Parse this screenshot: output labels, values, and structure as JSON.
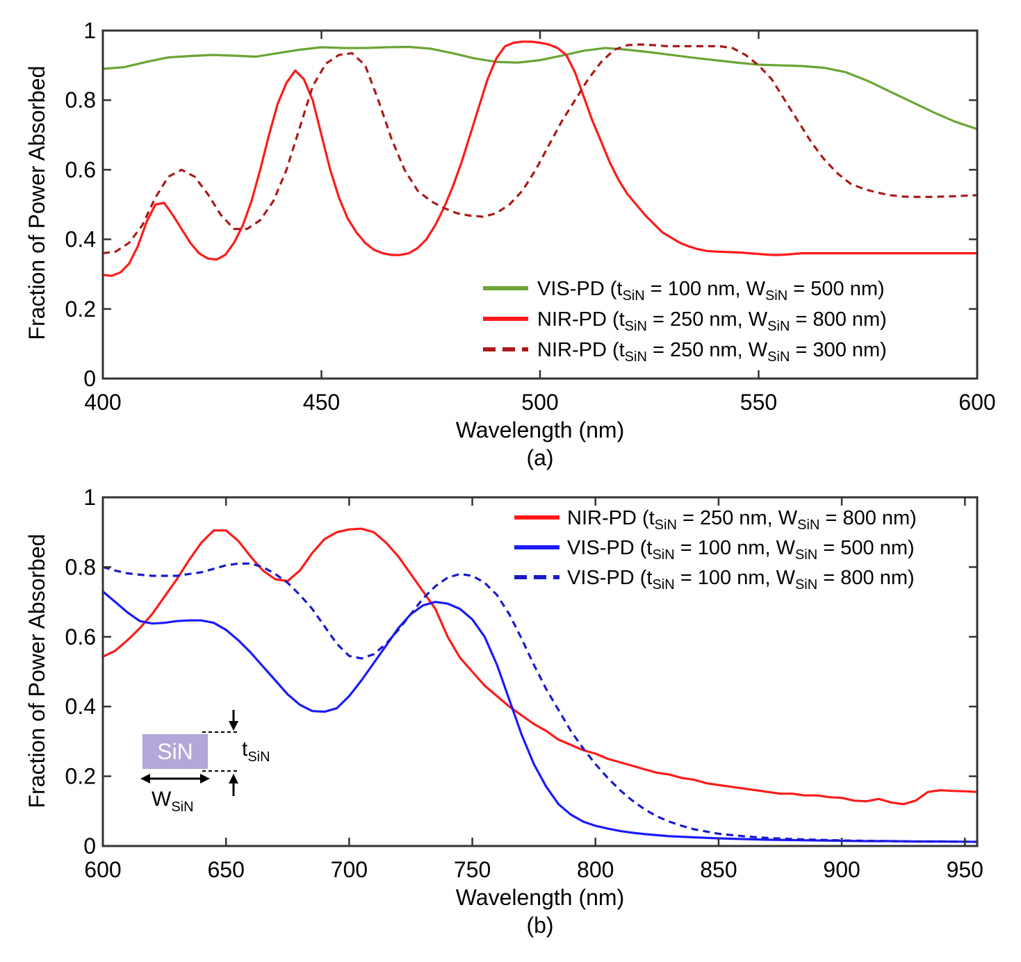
{
  "chart_data": [
    {
      "type": "line",
      "caption": "(a)",
      "xlabel": "Wavelength (nm)",
      "ylabel": "Fraction of Power Absorbed",
      "xlim": [
        400,
        600
      ],
      "ylim": [
        0,
        1
      ],
      "xticks": [
        "400",
        "450",
        "500",
        "550",
        "600"
      ],
      "yticks": [
        "0",
        "0.2",
        "0.4",
        "0.6",
        "0.8",
        "1"
      ],
      "legend_position": "bottom-right",
      "series": [
        {
          "name": "VIS-PD",
          "label_prefix": "VIS-PD (t",
          "t_value": " = 100 nm, W",
          "w_value": " = 500 nm)",
          "subscript": "SiN",
          "color": "#6aa535",
          "dash": "solid",
          "x": [
            400,
            405,
            410,
            415,
            420,
            425,
            430,
            435,
            440,
            445,
            450,
            455,
            460,
            465,
            470,
            475,
            480,
            485,
            490,
            495,
            500,
            505,
            510,
            515,
            520,
            525,
            530,
            535,
            540,
            545,
            550,
            555,
            560,
            565,
            570,
            575,
            580,
            585,
            590,
            595,
            600
          ],
          "y": [
            0.89,
            0.895,
            0.91,
            0.923,
            0.927,
            0.93,
            0.928,
            0.925,
            0.935,
            0.945,
            0.952,
            0.95,
            0.95,
            0.952,
            0.953,
            0.948,
            0.935,
            0.92,
            0.91,
            0.908,
            0.915,
            0.928,
            0.942,
            0.95,
            0.945,
            0.938,
            0.93,
            0.922,
            0.915,
            0.908,
            0.902,
            0.9,
            0.898,
            0.893,
            0.88,
            0.855,
            0.825,
            0.795,
            0.765,
            0.738,
            0.717
          ]
        },
        {
          "name": "NIR-PD 800",
          "label_prefix": "NIR-PD (t",
          "t_value": " = 250 nm, W",
          "w_value": " = 800 nm)",
          "subscript": "SiN",
          "color": "#ff1a1a",
          "dash": "solid",
          "x": [
            400,
            402,
            404,
            406,
            408,
            410,
            412,
            414,
            416,
            418,
            420,
            422,
            424,
            426,
            428,
            430,
            432,
            434,
            436,
            438,
            440,
            442,
            444,
            446,
            448,
            450,
            452,
            454,
            456,
            458,
            460,
            462,
            464,
            466,
            468,
            470,
            472,
            474,
            476,
            478,
            480,
            482,
            484,
            486,
            488,
            490,
            492,
            494,
            496,
            498,
            500,
            502,
            504,
            506,
            508,
            510,
            512,
            514,
            516,
            518,
            520,
            522,
            524,
            526,
            528,
            530,
            532,
            534,
            536,
            538,
            540,
            542,
            544,
            546,
            548,
            550,
            552,
            554,
            556,
            558,
            560,
            562,
            564,
            566,
            568,
            570,
            572,
            574,
            576,
            578,
            580,
            582,
            584,
            586,
            588,
            590,
            592,
            594,
            596,
            598,
            600
          ],
          "y": [
            0.298,
            0.295,
            0.305,
            0.33,
            0.38,
            0.45,
            0.5,
            0.505,
            0.47,
            0.43,
            0.39,
            0.36,
            0.345,
            0.342,
            0.355,
            0.39,
            0.44,
            0.51,
            0.6,
            0.7,
            0.79,
            0.85,
            0.885,
            0.86,
            0.8,
            0.7,
            0.6,
            0.52,
            0.46,
            0.42,
            0.39,
            0.37,
            0.36,
            0.355,
            0.355,
            0.36,
            0.375,
            0.4,
            0.44,
            0.49,
            0.55,
            0.62,
            0.7,
            0.78,
            0.86,
            0.92,
            0.955,
            0.965,
            0.968,
            0.968,
            0.965,
            0.96,
            0.95,
            0.93,
            0.88,
            0.81,
            0.74,
            0.68,
            0.62,
            0.57,
            0.53,
            0.5,
            0.47,
            0.445,
            0.42,
            0.405,
            0.39,
            0.38,
            0.372,
            0.367,
            0.365,
            0.364,
            0.363,
            0.362,
            0.36,
            0.358,
            0.356,
            0.355,
            0.356,
            0.358,
            0.36,
            0.36,
            0.36,
            0.36,
            0.36,
            0.36,
            0.36,
            0.36,
            0.36,
            0.36,
            0.36,
            0.36,
            0.36,
            0.36,
            0.36,
            0.36,
            0.36,
            0.36,
            0.36,
            0.36,
            0.36
          ]
        },
        {
          "name": "NIR-PD 300",
          "label_prefix": "NIR-PD (t",
          "t_value": " = 250 nm, W",
          "w_value": " = 300 nm)",
          "subscript": "SiN",
          "color": "#aa1a1a",
          "dash": "dashed",
          "x": [
            400,
            403,
            406,
            409,
            412,
            415,
            418,
            421,
            424,
            427,
            430,
            433,
            436,
            439,
            442,
            445,
            448,
            451,
            454,
            457,
            460,
            463,
            466,
            469,
            472,
            475,
            478,
            481,
            484,
            487,
            490,
            493,
            496,
            499,
            502,
            505,
            508,
            511,
            514,
            517,
            520,
            523,
            526,
            529,
            532,
            535,
            538,
            541,
            544,
            547,
            550,
            553,
            556,
            559,
            562,
            565,
            568,
            571,
            574,
            577,
            580,
            583,
            586,
            589,
            592,
            595,
            598,
            600
          ],
          "y": [
            0.36,
            0.365,
            0.39,
            0.44,
            0.52,
            0.58,
            0.6,
            0.58,
            0.53,
            0.47,
            0.43,
            0.43,
            0.455,
            0.51,
            0.6,
            0.72,
            0.84,
            0.905,
            0.93,
            0.935,
            0.9,
            0.8,
            0.69,
            0.6,
            0.54,
            0.51,
            0.49,
            0.475,
            0.468,
            0.465,
            0.475,
            0.5,
            0.54,
            0.6,
            0.67,
            0.74,
            0.8,
            0.86,
            0.91,
            0.945,
            0.958,
            0.96,
            0.958,
            0.955,
            0.955,
            0.955,
            0.955,
            0.955,
            0.95,
            0.93,
            0.9,
            0.86,
            0.8,
            0.74,
            0.68,
            0.63,
            0.59,
            0.56,
            0.545,
            0.535,
            0.527,
            0.523,
            0.522,
            0.522,
            0.523,
            0.524,
            0.526,
            0.527
          ]
        }
      ]
    },
    {
      "type": "line",
      "caption": "(b)",
      "xlabel": "Wavelength (nm)",
      "ylabel": "Fraction of Power Absorbed",
      "xlim": [
        600,
        955
      ],
      "ylim": [
        0,
        1
      ],
      "xticks": [
        "600",
        "650",
        "700",
        "750",
        "800",
        "850",
        "900",
        "950"
      ],
      "yticks": [
        "0",
        "0.2",
        "0.4",
        "0.6",
        "0.8",
        "1"
      ],
      "legend_position": "top-right",
      "series": [
        {
          "name": "NIR-PD 800",
          "label_prefix": "NIR-PD (t",
          "t_value": " = 250 nm, W",
          "w_value": " = 800 nm)",
          "subscript": "SiN",
          "color": "#ff1a1a",
          "dash": "solid",
          "x": [
            600,
            605,
            610,
            615,
            620,
            625,
            630,
            635,
            640,
            645,
            650,
            655,
            660,
            665,
            670,
            675,
            680,
            685,
            690,
            695,
            700,
            705,
            710,
            715,
            720,
            725,
            730,
            735,
            740,
            745,
            750,
            755,
            760,
            765,
            770,
            775,
            780,
            785,
            790,
            795,
            800,
            805,
            810,
            815,
            820,
            825,
            830,
            835,
            840,
            845,
            850,
            855,
            860,
            865,
            870,
            875,
            880,
            885,
            890,
            895,
            900,
            905,
            910,
            915,
            920,
            925,
            930,
            935,
            940,
            945,
            950,
            955
          ],
          "y": [
            0.543,
            0.56,
            0.59,
            0.625,
            0.665,
            0.715,
            0.765,
            0.82,
            0.87,
            0.905,
            0.905,
            0.875,
            0.83,
            0.79,
            0.765,
            0.76,
            0.79,
            0.84,
            0.88,
            0.9,
            0.908,
            0.91,
            0.9,
            0.87,
            0.83,
            0.78,
            0.73,
            0.68,
            0.6,
            0.54,
            0.5,
            0.46,
            0.43,
            0.4,
            0.375,
            0.35,
            0.33,
            0.305,
            0.29,
            0.275,
            0.265,
            0.25,
            0.24,
            0.23,
            0.22,
            0.21,
            0.205,
            0.195,
            0.19,
            0.18,
            0.175,
            0.17,
            0.165,
            0.16,
            0.155,
            0.15,
            0.15,
            0.145,
            0.145,
            0.14,
            0.138,
            0.13,
            0.128,
            0.135,
            0.125,
            0.12,
            0.13,
            0.155,
            0.16,
            0.158,
            0.157,
            0.155
          ]
        },
        {
          "name": "VIS-PD 500",
          "label_prefix": "VIS-PD (t",
          "t_value": " = 100 nm, W",
          "w_value": " = 500 nm)",
          "subscript": "SiN",
          "color": "#1a1aff",
          "dash": "solid",
          "x": [
            600,
            605,
            610,
            615,
            620,
            625,
            630,
            635,
            640,
            645,
            650,
            655,
            660,
            665,
            670,
            675,
            680,
            685,
            690,
            695,
            700,
            705,
            710,
            715,
            720,
            725,
            730,
            735,
            740,
            745,
            750,
            755,
            760,
            765,
            770,
            775,
            780,
            785,
            790,
            795,
            800,
            805,
            810,
            815,
            820,
            825,
            830,
            840,
            850,
            860,
            870,
            880,
            890,
            900,
            910,
            920,
            930,
            940,
            955
          ],
          "y": [
            0.73,
            0.7,
            0.67,
            0.645,
            0.638,
            0.64,
            0.645,
            0.647,
            0.647,
            0.64,
            0.62,
            0.59,
            0.555,
            0.515,
            0.475,
            0.435,
            0.405,
            0.387,
            0.385,
            0.395,
            0.43,
            0.475,
            0.525,
            0.575,
            0.625,
            0.665,
            0.69,
            0.7,
            0.695,
            0.68,
            0.65,
            0.6,
            0.52,
            0.42,
            0.32,
            0.235,
            0.17,
            0.12,
            0.09,
            0.07,
            0.058,
            0.05,
            0.043,
            0.038,
            0.034,
            0.031,
            0.028,
            0.025,
            0.022,
            0.02,
            0.018,
            0.017,
            0.016,
            0.015,
            0.014,
            0.014,
            0.013,
            0.013,
            0.012
          ]
        },
        {
          "name": "VIS-PD 800",
          "label_prefix": "VIS-PD (t",
          "t_value": " = 100 nm, W",
          "w_value": " = 800 nm)",
          "subscript": "SiN",
          "color": "#1a1acc",
          "dash": "dashed",
          "x": [
            600,
            605,
            610,
            615,
            620,
            625,
            630,
            635,
            640,
            645,
            650,
            655,
            660,
            665,
            670,
            675,
            680,
            685,
            690,
            695,
            700,
            705,
            710,
            715,
            720,
            725,
            730,
            735,
            740,
            745,
            750,
            755,
            760,
            765,
            770,
            775,
            780,
            785,
            790,
            795,
            800,
            805,
            810,
            815,
            820,
            825,
            830,
            835,
            840,
            850,
            860,
            870,
            880,
            890,
            900,
            910,
            920,
            930,
            940,
            955
          ],
          "y": [
            0.8,
            0.79,
            0.782,
            0.778,
            0.775,
            0.775,
            0.775,
            0.78,
            0.785,
            0.795,
            0.805,
            0.81,
            0.81,
            0.8,
            0.78,
            0.755,
            0.72,
            0.68,
            0.63,
            0.58,
            0.545,
            0.538,
            0.55,
            0.58,
            0.62,
            0.665,
            0.71,
            0.745,
            0.77,
            0.78,
            0.775,
            0.755,
            0.72,
            0.665,
            0.595,
            0.52,
            0.45,
            0.39,
            0.33,
            0.28,
            0.235,
            0.195,
            0.16,
            0.13,
            0.105,
            0.085,
            0.07,
            0.058,
            0.048,
            0.035,
            0.028,
            0.023,
            0.02,
            0.018,
            0.016,
            0.015,
            0.014,
            0.013,
            0.013,
            0.012
          ]
        }
      ],
      "inset": {
        "box_label": "SiN",
        "box_color": "#b3a6d8",
        "t_label": "t",
        "w_label": "W",
        "subscript": "SiN"
      }
    }
  ]
}
